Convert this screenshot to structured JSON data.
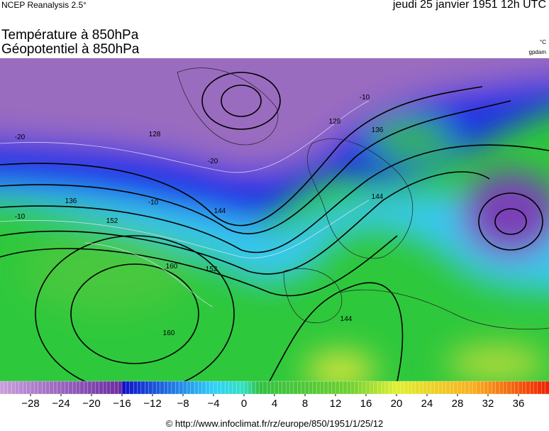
{
  "header": {
    "source": "NCEP Reanalysis 2.5°",
    "date": "jeudi 25 janvier 1951 12h UTC"
  },
  "title": {
    "line1": "Température à 850hPa",
    "line2": "Géopotentiel à 850hPa"
  },
  "units": {
    "temperature": "°C",
    "geopotential": "gpdam"
  },
  "map": {
    "contour_labels": [
      "128",
      "136",
      "144",
      "152",
      "160",
      "160",
      "136",
      "144",
      "128",
      "152",
      "144",
      "-10",
      "-20",
      "-10",
      "-10",
      "-20"
    ]
  },
  "colorbar": {
    "lim": [
      -32,
      40
    ],
    "ticks": [
      {
        "value": -28,
        "label": "−28"
      },
      {
        "value": -24,
        "label": "−24"
      },
      {
        "value": -20,
        "label": "−20"
      },
      {
        "value": -16,
        "label": "−16"
      },
      {
        "value": -12,
        "label": "−12"
      },
      {
        "value": -8,
        "label": "−8"
      },
      {
        "value": -4,
        "label": "−4"
      },
      0,
      4,
      8,
      12,
      16,
      20,
      24,
      28,
      32,
      36
    ]
  },
  "footer": "© http://www.infoclimat.fr/rz/europe/850/1951/1/25/12"
}
